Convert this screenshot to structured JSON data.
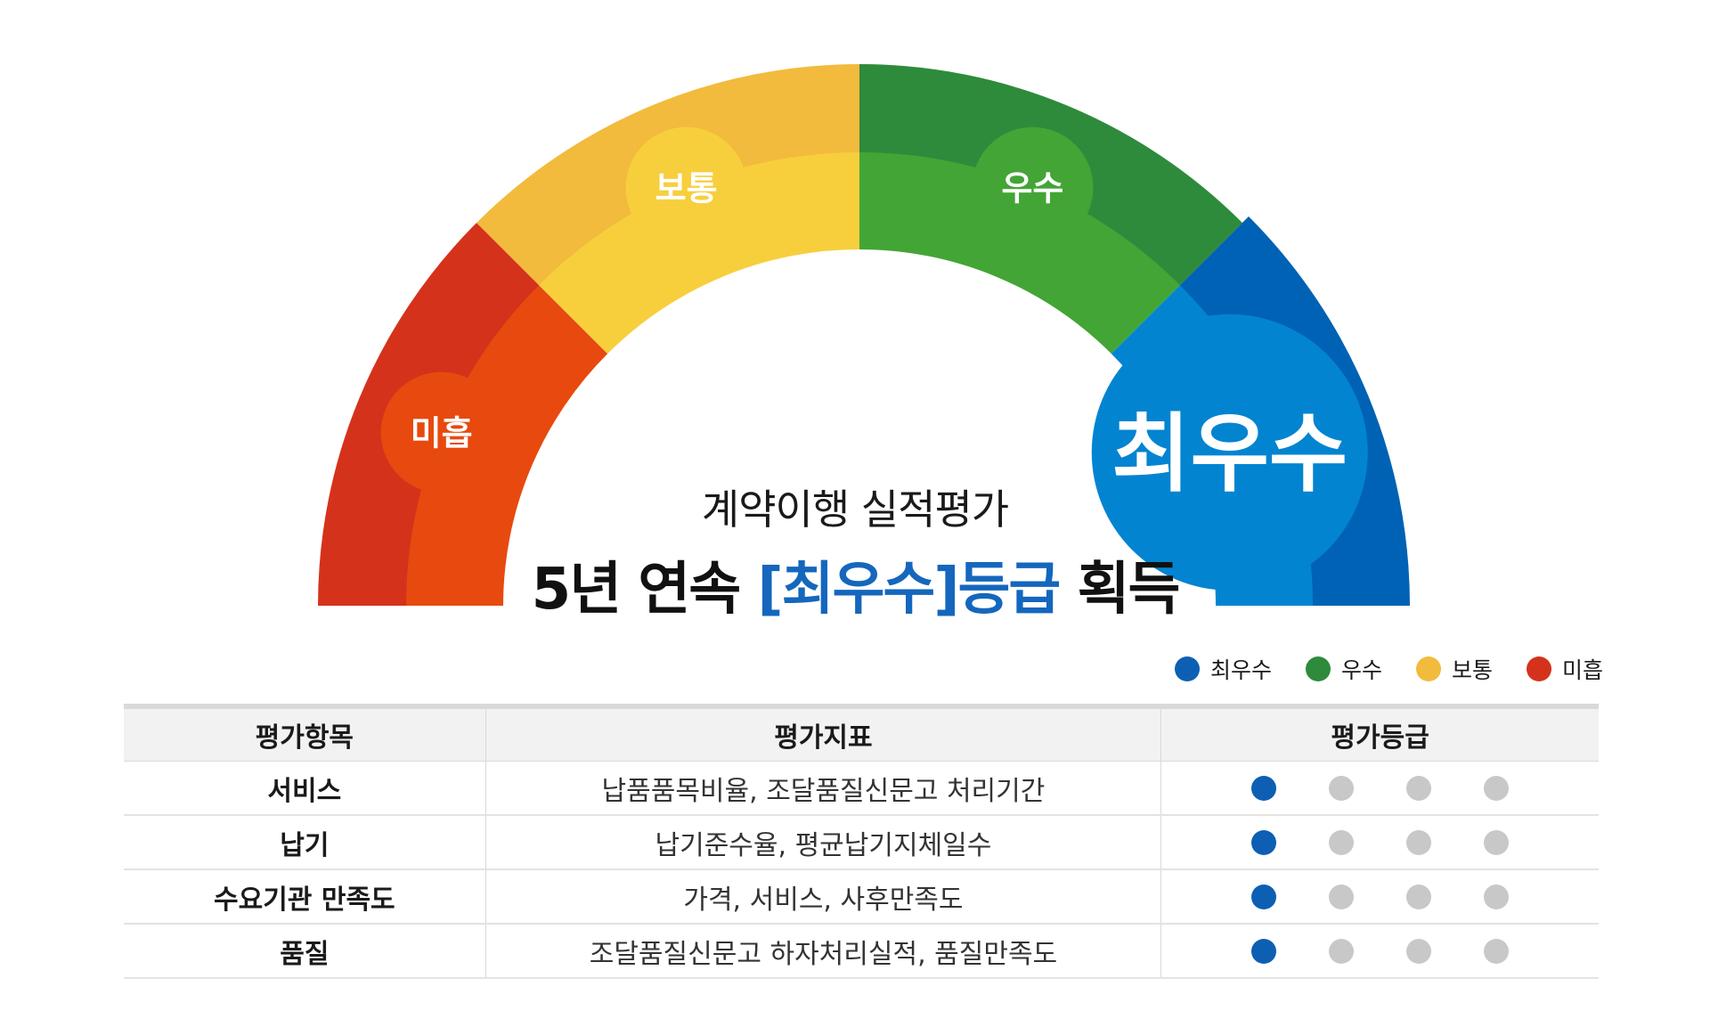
{
  "gauge": {
    "segments": [
      {
        "label": "미흡",
        "color_outer": "#d5321b",
        "color_inner": "#e8490f"
      },
      {
        "label": "보통",
        "color_outer": "#f2bb3d",
        "color_inner": "#f7cf3d"
      },
      {
        "label": "우수",
        "color_outer": "#2e8b3b",
        "color_inner": "#43a535"
      },
      {
        "label": "최우수",
        "color_outer": "#0062b4",
        "color_inner": "#0384d1"
      }
    ]
  },
  "subtitle": "계약이행 실적평가",
  "headline": {
    "prefix": "5년 연속 ",
    "highlight": "[최우수]등급",
    "suffix": " 획득"
  },
  "legend": [
    {
      "label": "최우수",
      "color": "#0d5fb3"
    },
    {
      "label": "우수",
      "color": "#2e8b3b"
    },
    {
      "label": "보통",
      "color": "#f2bb3d"
    },
    {
      "label": "미흡",
      "color": "#d5321b"
    }
  ],
  "table": {
    "headers": [
      "평가항목",
      "평가지표",
      "평가등급"
    ],
    "rows": [
      {
        "item": "서비스",
        "indicator": "납품품목비율, 조달품질신문고 처리기간",
        "grade_index": 0
      },
      {
        "item": "납기",
        "indicator": "납기준수율, 평균납기지체일수",
        "grade_index": 0
      },
      {
        "item": "수요기관 만족도",
        "indicator": "가격, 서비스, 사후만족도",
        "grade_index": 0
      },
      {
        "item": "품질",
        "indicator": "조달품질신문고 하자처리실적, 품질만족도",
        "grade_index": 0
      }
    ],
    "active_color": "#0d5fb3",
    "inactive_color": "#c8c8c8"
  }
}
